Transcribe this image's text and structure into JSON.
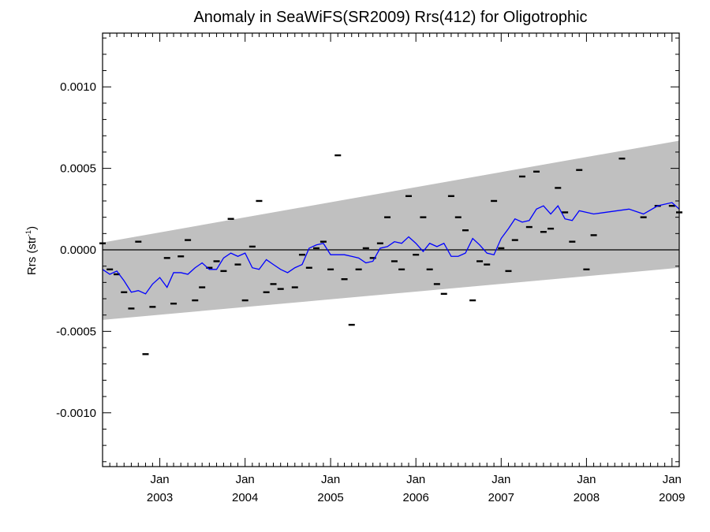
{
  "chart_data": {
    "type": "scatter",
    "title": "Anomaly in SeaWiFS(SR2009) Rrs(412) for Oligotrophic",
    "ylabel_main": "Rrs (str",
    "ylabel_sup": "-1",
    "ylabel_close": ")",
    "xlabel": "",
    "xlim": [
      "2002-05-01",
      "2009-02-01"
    ],
    "ylim": [
      -0.00133,
      0.00133
    ],
    "y_ticks": [
      {
        "value": 0.001,
        "label": "0.0010"
      },
      {
        "value": 0.0005,
        "label": "0.0005"
      },
      {
        "value": 0.0,
        "label": "0.0000"
      },
      {
        "value": -0.0005,
        "label": "-0.0005"
      },
      {
        "value": -0.001,
        "label": "-0.0010"
      }
    ],
    "x_ticks": [
      {
        "date": "2003-01-01",
        "month": "Jan",
        "year": "2003"
      },
      {
        "date": "2004-01-01",
        "month": "Jan",
        "year": "2004"
      },
      {
        "date": "2005-01-01",
        "month": "Jan",
        "year": "2005"
      },
      {
        "date": "2006-01-01",
        "month": "Jan",
        "year": "2006"
      },
      {
        "date": "2007-01-01",
        "month": "Jan",
        "year": "2007"
      },
      {
        "date": "2008-01-01",
        "month": "Jan",
        "year": "2008"
      },
      {
        "date": "2009-01-01",
        "month": "Jan",
        "year": "2009"
      }
    ],
    "grid": false,
    "zero_line": true,
    "envelope": {
      "color": "#c0c0c0",
      "x": [
        "2002-05-01",
        "2009-02-01"
      ],
      "upper": [
        4.5e-05,
        0.00067
      ],
      "lower": [
        -0.00043,
        -0.00011
      ]
    },
    "series": [
      {
        "type": "scatter",
        "color": "#000000",
        "points": [
          {
            "x": "2002-05-01",
            "y": 4e-05
          },
          {
            "x": "2002-06-01",
            "y": -0.00012
          },
          {
            "x": "2002-07-01",
            "y": -0.00015
          },
          {
            "x": "2002-08-01",
            "y": -0.00026
          },
          {
            "x": "2002-09-01",
            "y": -0.00036
          },
          {
            "x": "2002-10-01",
            "y": 5e-05
          },
          {
            "x": "2002-11-01",
            "y": -0.00064
          },
          {
            "x": "2002-12-01",
            "y": -0.00035
          },
          {
            "x": "2003-02-01",
            "y": -5e-05
          },
          {
            "x": "2003-03-01",
            "y": -0.00033
          },
          {
            "x": "2003-04-01",
            "y": -4e-05
          },
          {
            "x": "2003-05-01",
            "y": 6e-05
          },
          {
            "x": "2003-06-01",
            "y": -0.00031
          },
          {
            "x": "2003-07-01",
            "y": -0.00023
          },
          {
            "x": "2003-08-01",
            "y": -0.00011
          },
          {
            "x": "2003-09-01",
            "y": -7e-05
          },
          {
            "x": "2003-10-01",
            "y": -0.00013
          },
          {
            "x": "2003-11-01",
            "y": 0.00019
          },
          {
            "x": "2003-12-01",
            "y": -9e-05
          },
          {
            "x": "2004-01-01",
            "y": -0.00031
          },
          {
            "x": "2004-02-01",
            "y": 2e-05
          },
          {
            "x": "2004-03-01",
            "y": 0.0003
          },
          {
            "x": "2004-04-01",
            "y": -0.00026
          },
          {
            "x": "2004-05-01",
            "y": -0.00021
          },
          {
            "x": "2004-06-01",
            "y": -0.00024
          },
          {
            "x": "2004-08-01",
            "y": -0.00023
          },
          {
            "x": "2004-09-01",
            "y": -3e-05
          },
          {
            "x": "2004-10-01",
            "y": -0.00011
          },
          {
            "x": "2004-11-01",
            "y": 1e-05
          },
          {
            "x": "2004-12-01",
            "y": 5e-05
          },
          {
            "x": "2005-01-01",
            "y": -0.00012
          },
          {
            "x": "2005-02-01",
            "y": 0.00058
          },
          {
            "x": "2005-03-01",
            "y": -0.00018
          },
          {
            "x": "2005-04-01",
            "y": -0.00046
          },
          {
            "x": "2005-05-01",
            "y": -0.00012
          },
          {
            "x": "2005-06-01",
            "y": 1e-05
          },
          {
            "x": "2005-07-01",
            "y": -5e-05
          },
          {
            "x": "2005-08-01",
            "y": 4e-05
          },
          {
            "x": "2005-09-01",
            "y": 0.0002
          },
          {
            "x": "2005-10-01",
            "y": -7e-05
          },
          {
            "x": "2005-11-01",
            "y": -0.00012
          },
          {
            "x": "2005-12-01",
            "y": 0.00033
          },
          {
            "x": "2006-01-01",
            "y": -3e-05
          },
          {
            "x": "2006-02-01",
            "y": 0.0002
          },
          {
            "x": "2006-03-01",
            "y": -0.00012
          },
          {
            "x": "2006-04-01",
            "y": -0.00021
          },
          {
            "x": "2006-05-01",
            "y": -0.00027
          },
          {
            "x": "2006-06-01",
            "y": 0.00033
          },
          {
            "x": "2006-07-01",
            "y": 0.0002
          },
          {
            "x": "2006-08-01",
            "y": 0.00012
          },
          {
            "x": "2006-09-01",
            "y": -0.00031
          },
          {
            "x": "2006-10-01",
            "y": -7e-05
          },
          {
            "x": "2006-11-01",
            "y": -9e-05
          },
          {
            "x": "2006-12-01",
            "y": 0.0003
          },
          {
            "x": "2007-01-01",
            "y": 1e-05
          },
          {
            "x": "2007-02-01",
            "y": -0.00013
          },
          {
            "x": "2007-03-01",
            "y": 6e-05
          },
          {
            "x": "2007-04-01",
            "y": 0.00045
          },
          {
            "x": "2007-05-01",
            "y": 0.00014
          },
          {
            "x": "2007-06-01",
            "y": 0.00048
          },
          {
            "x": "2007-07-01",
            "y": 0.00011
          },
          {
            "x": "2007-08-01",
            "y": 0.00013
          },
          {
            "x": "2007-09-01",
            "y": 0.00038
          },
          {
            "x": "2007-10-01",
            "y": 0.00023
          },
          {
            "x": "2007-11-01",
            "y": 5e-05
          },
          {
            "x": "2007-12-01",
            "y": 0.00049
          },
          {
            "x": "2008-01-01",
            "y": -0.00012
          },
          {
            "x": "2008-02-01",
            "y": 9e-05
          },
          {
            "x": "2008-06-01",
            "y": 0.00056
          },
          {
            "x": "2008-09-01",
            "y": 0.0002
          },
          {
            "x": "2008-11-01",
            "y": 0.00027
          },
          {
            "x": "2009-01-01",
            "y": 0.00027
          },
          {
            "x": "2009-02-01",
            "y": 0.00023
          }
        ]
      },
      {
        "type": "line",
        "color": "#0000ff",
        "points": [
          {
            "x": "2002-05-01",
            "y": -0.00012
          },
          {
            "x": "2002-06-01",
            "y": -0.00015
          },
          {
            "x": "2002-07-01",
            "y": -0.00013
          },
          {
            "x": "2002-08-01",
            "y": -0.00019
          },
          {
            "x": "2002-09-01",
            "y": -0.00026
          },
          {
            "x": "2002-10-01",
            "y": -0.00025
          },
          {
            "x": "2002-11-01",
            "y": -0.00027
          },
          {
            "x": "2002-12-01",
            "y": -0.00021
          },
          {
            "x": "2003-01-01",
            "y": -0.00017
          },
          {
            "x": "2003-02-01",
            "y": -0.00023
          },
          {
            "x": "2003-03-01",
            "y": -0.00014
          },
          {
            "x": "2003-04-01",
            "y": -0.00014
          },
          {
            "x": "2003-05-01",
            "y": -0.00015
          },
          {
            "x": "2003-06-01",
            "y": -0.00011
          },
          {
            "x": "2003-07-01",
            "y": -8e-05
          },
          {
            "x": "2003-08-01",
            "y": -0.00012
          },
          {
            "x": "2003-09-01",
            "y": -0.00012
          },
          {
            "x": "2003-10-01",
            "y": -5e-05
          },
          {
            "x": "2003-11-01",
            "y": -2e-05
          },
          {
            "x": "2003-12-01",
            "y": -4e-05
          },
          {
            "x": "2004-01-01",
            "y": -2e-05
          },
          {
            "x": "2004-02-01",
            "y": -0.00011
          },
          {
            "x": "2004-03-01",
            "y": -0.00012
          },
          {
            "x": "2004-04-01",
            "y": -6e-05
          },
          {
            "x": "2004-05-01",
            "y": -9e-05
          },
          {
            "x": "2004-06-01",
            "y": -0.00012
          },
          {
            "x": "2004-07-01",
            "y": -0.00014
          },
          {
            "x": "2004-08-01",
            "y": -0.00011
          },
          {
            "x": "2004-09-01",
            "y": -9e-05
          },
          {
            "x": "2004-10-01",
            "y": 1e-05
          },
          {
            "x": "2004-11-01",
            "y": 3e-05
          },
          {
            "x": "2004-12-01",
            "y": 4e-05
          },
          {
            "x": "2005-01-01",
            "y": -3e-05
          },
          {
            "x": "2005-02-01",
            "y": -3e-05
          },
          {
            "x": "2005-03-01",
            "y": -3e-05
          },
          {
            "x": "2005-04-01",
            "y": -4e-05
          },
          {
            "x": "2005-05-01",
            "y": -5e-05
          },
          {
            "x": "2005-06-01",
            "y": -8e-05
          },
          {
            "x": "2005-07-01",
            "y": -7e-05
          },
          {
            "x": "2005-08-01",
            "y": 1e-05
          },
          {
            "x": "2005-09-01",
            "y": 2e-05
          },
          {
            "x": "2005-10-01",
            "y": 5e-05
          },
          {
            "x": "2005-11-01",
            "y": 4e-05
          },
          {
            "x": "2005-12-01",
            "y": 8e-05
          },
          {
            "x": "2006-01-01",
            "y": 4e-05
          },
          {
            "x": "2006-02-01",
            "y": -1e-05
          },
          {
            "x": "2006-03-01",
            "y": 4e-05
          },
          {
            "x": "2006-04-01",
            "y": 2e-05
          },
          {
            "x": "2006-05-01",
            "y": 4e-05
          },
          {
            "x": "2006-06-01",
            "y": -4e-05
          },
          {
            "x": "2006-07-01",
            "y": -4e-05
          },
          {
            "x": "2006-08-01",
            "y": -2e-05
          },
          {
            "x": "2006-09-01",
            "y": 7e-05
          },
          {
            "x": "2006-10-01",
            "y": 3e-05
          },
          {
            "x": "2006-11-01",
            "y": -2e-05
          },
          {
            "x": "2006-12-01",
            "y": -3e-05
          },
          {
            "x": "2007-01-01",
            "y": 7e-05
          },
          {
            "x": "2007-02-01",
            "y": 0.00013
          },
          {
            "x": "2007-03-01",
            "y": 0.00019
          },
          {
            "x": "2007-04-01",
            "y": 0.00017
          },
          {
            "x": "2007-05-01",
            "y": 0.00018
          },
          {
            "x": "2007-06-01",
            "y": 0.00025
          },
          {
            "x": "2007-07-01",
            "y": 0.00027
          },
          {
            "x": "2007-08-01",
            "y": 0.00022
          },
          {
            "x": "2007-09-01",
            "y": 0.00027
          },
          {
            "x": "2007-10-01",
            "y": 0.00019
          },
          {
            "x": "2007-11-01",
            "y": 0.00018
          },
          {
            "x": "2007-12-01",
            "y": 0.00024
          },
          {
            "x": "2008-02-01",
            "y": 0.00022
          },
          {
            "x": "2008-07-01",
            "y": 0.00025
          },
          {
            "x": "2008-09-01",
            "y": 0.00022
          },
          {
            "x": "2008-11-01",
            "y": 0.00027
          },
          {
            "x": "2009-01-01",
            "y": 0.00029
          },
          {
            "x": "2009-02-01",
            "y": 0.00025
          }
        ]
      }
    ]
  }
}
